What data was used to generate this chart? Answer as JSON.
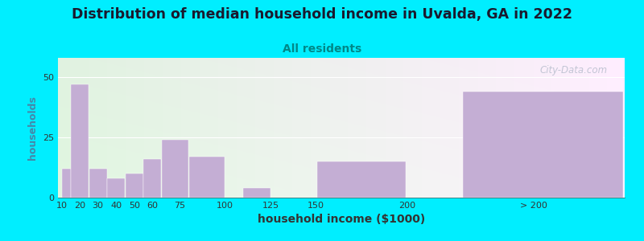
{
  "title": "Distribution of median household income in Uvalda, GA in 2022",
  "subtitle": "All residents",
  "xlabel": "household income ($1000)",
  "ylabel": "households",
  "background_outer": "#00eeff",
  "bar_color": "#c4aed4",
  "title_fontsize": 12.5,
  "subtitle_fontsize": 10,
  "subtitle_color": "#008888",
  "xlabel_fontsize": 10,
  "ylabel_fontsize": 9,
  "bar_lefts": [
    10,
    15,
    25,
    35,
    45,
    55,
    65,
    80,
    110,
    125,
    150,
    230
  ],
  "bar_widths": [
    5,
    10,
    10,
    10,
    10,
    10,
    15,
    20,
    15,
    25,
    50,
    90
  ],
  "bar_heights": [
    12,
    47,
    12,
    8,
    10,
    16,
    24,
    17,
    4,
    0,
    15,
    44
  ],
  "xtick_positions": [
    10,
    20,
    30,
    40,
    50,
    60,
    75,
    100,
    125,
    150,
    200,
    270
  ],
  "xtick_labels": [
    "10",
    "20",
    "30",
    "40",
    "50",
    "60",
    "75",
    "100",
    "125",
    "150",
    "200",
    "> 200"
  ],
  "ylim": [
    0,
    58
  ],
  "ytick_positions": [
    0,
    25,
    50
  ],
  "xlim_left": 8,
  "xlim_right": 320,
  "watermark": "City-Data.com"
}
